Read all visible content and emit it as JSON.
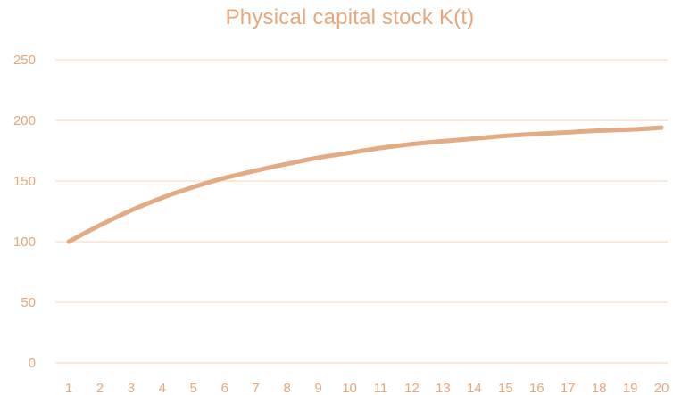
{
  "chart_data": {
    "type": "line",
    "title": "Physical capital stock K(t)",
    "xlabel": "",
    "ylabel": "",
    "categories": [
      "1",
      "2",
      "3",
      "4",
      "5",
      "6",
      "7",
      "8",
      "9",
      "10",
      "11",
      "12",
      "13",
      "14",
      "15",
      "16",
      "17",
      "18",
      "19",
      "20"
    ],
    "series": [
      {
        "values": [
          100,
          113.5,
          125.8,
          136.2,
          145.0,
          152.5,
          158.6,
          164.1,
          169.2,
          173.2,
          177.2,
          180.4,
          182.8,
          185.0,
          187.2,
          188.8,
          190.2,
          191.6,
          192.5,
          194.0
        ]
      }
    ],
    "ylim": [
      0,
      250
    ],
    "yticks": [
      0,
      50,
      100,
      150,
      200,
      250
    ],
    "grid": true,
    "legend": "none",
    "colors": {
      "line": "#E2AB83",
      "grid": "#F4DECB",
      "tick_text": "#E7A77B",
      "title": "#E7A77B"
    }
  }
}
